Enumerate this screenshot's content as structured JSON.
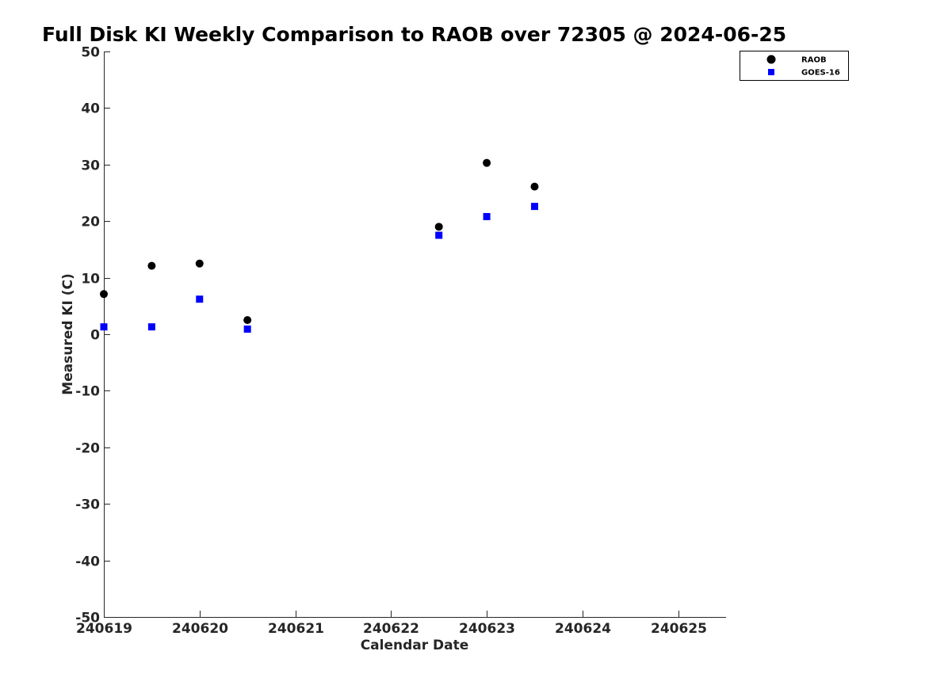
{
  "chart_data": {
    "type": "scatter",
    "title": "Full Disk KI Weekly Comparison to RAOB over 72305 @ 2024-06-25",
    "xlabel": "Calendar Date",
    "ylabel": "Measured KI (C)",
    "xlim": [
      0,
      6.5
    ],
    "ylim": [
      -50,
      50
    ],
    "x_tick_values": [
      0,
      1,
      2,
      3,
      4,
      5,
      6
    ],
    "x_tick_labels": [
      "240619",
      "240620",
      "240621",
      "240622",
      "240623",
      "240624",
      "240625"
    ],
    "y_ticks": [
      50,
      40,
      30,
      20,
      10,
      0,
      -10,
      -20,
      -30,
      -40,
      -50
    ],
    "grid": false,
    "legend_position": "top-right",
    "series": [
      {
        "name": "RAOB",
        "marker": "circle",
        "color": "#000000",
        "x": [
          0,
          0.5,
          1,
          1.5,
          3.5,
          4,
          4.5
        ],
        "y": [
          7.1,
          12.1,
          12.5,
          2.5,
          19.0,
          30.3,
          26.1
        ]
      },
      {
        "name": "GOES-16",
        "marker": "square",
        "color": "#0000ff",
        "x": [
          0,
          0.5,
          1,
          1.5,
          3.5,
          4,
          4.5
        ],
        "y": [
          1.3,
          1.3,
          6.2,
          0.9,
          17.5,
          20.8,
          22.6
        ]
      }
    ]
  }
}
